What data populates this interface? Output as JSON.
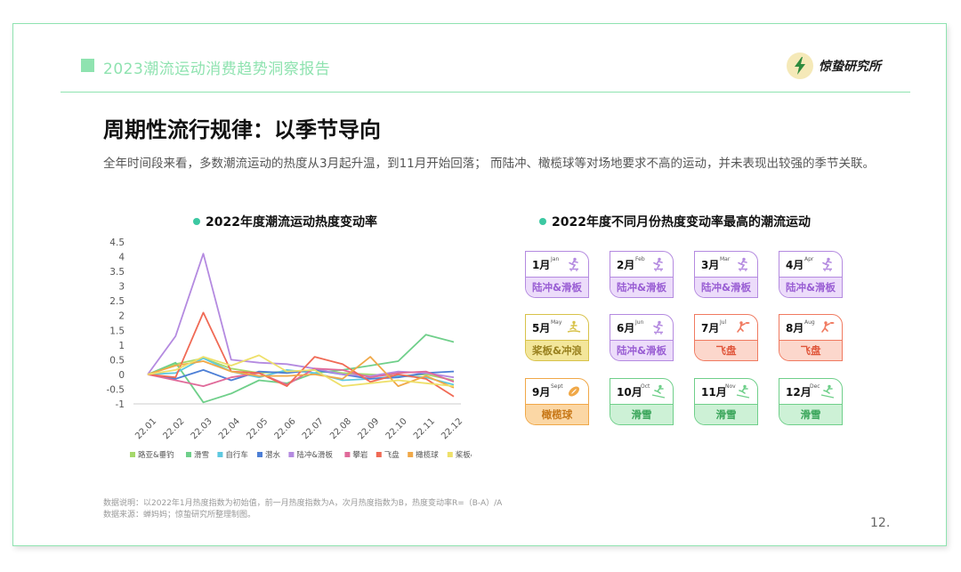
{
  "header": {
    "report_title": "2023潮流运动消费趋势洞察报告",
    "logo_text": "惊蛰研究所"
  },
  "page": {
    "title": "周期性流行规律：以季节导向",
    "description": "全年时间段来看，多数潮流运动的热度从3月起升温，到11月开始回落； 而陆冲、橄榄球等对场地要求不高的运动，并未表现出较强的季节关联。",
    "note": "数据说明：以2022年1月热度指数为初始值，前一月热度指数为A，次月热度指数为B，热度变动率R=（B-A）/A",
    "source": "数据来源：蝉妈妈；惊蛰研究所整理制图。",
    "page_number": "12."
  },
  "chart_data": {
    "type": "line",
    "title": "2022年度潮流运动热度变动率",
    "categories": [
      "22.01",
      "22.02",
      "22.03",
      "22.04",
      "22.05",
      "22.06",
      "22.07",
      "22.08",
      "22.09",
      "22.10",
      "22.11",
      "22.12"
    ],
    "ylim": [
      -1,
      4.5
    ],
    "yticks": [
      "4.5",
      "4",
      "3.5",
      "3",
      "2.5",
      "2",
      "1.5",
      "1",
      "0.5",
      "0",
      "-0.5",
      "-1"
    ],
    "grid": false,
    "legend_position": "bottom",
    "series": [
      {
        "name": "路亚&垂钓",
        "color": "#a5d86b",
        "values": [
          0,
          0.35,
          0.55,
          0.2,
          0.05,
          0.1,
          0.15,
          0.05,
          0,
          -0.05,
          0,
          -0.2
        ]
      },
      {
        "name": "滑雪",
        "color": "#6fcf8a",
        "values": [
          0,
          0.4,
          -0.95,
          -0.65,
          -0.2,
          -0.3,
          0.05,
          0.15,
          0.3,
          0.45,
          1.35,
          1.1
        ]
      },
      {
        "name": "自行车",
        "color": "#5ec9e0",
        "values": [
          0,
          0.05,
          0.55,
          0.1,
          -0.1,
          0.15,
          0.05,
          -0.2,
          -0.15,
          -0.05,
          -0.1,
          -0.35
        ]
      },
      {
        "name": "潜水",
        "color": "#4d7fd6",
        "values": [
          0,
          -0.15,
          0.15,
          -0.2,
          0.1,
          0.05,
          0.15,
          0,
          -0.15,
          -0.1,
          0.05,
          0.1
        ]
      },
      {
        "name": "陆冲&滑板",
        "color": "#b48ae0",
        "values": [
          0,
          1.3,
          4.1,
          0.5,
          0.4,
          0.35,
          0.2,
          0,
          -0.05,
          0.1,
          0.05,
          -0.1
        ]
      },
      {
        "name": "攀岩",
        "color": "#e06a9a",
        "values": [
          0,
          -0.2,
          -0.4,
          -0.1,
          0.05,
          -0.35,
          0.2,
          0.15,
          -0.1,
          0.05,
          0.1,
          -0.25
        ]
      },
      {
        "name": "飞盘",
        "color": "#f06a55",
        "values": [
          0,
          -0.1,
          2.1,
          0.1,
          0.05,
          -0.4,
          0.6,
          0.35,
          -0.25,
          0,
          -0.15,
          -0.75
        ]
      },
      {
        "name": "橄榄球",
        "color": "#f0a848",
        "values": [
          0,
          0.3,
          0.45,
          0.1,
          -0.05,
          -0.05,
          0,
          -0.15,
          0.6,
          -0.4,
          -0.05,
          -0.45
        ]
      },
      {
        "name": "桨板&冲浪",
        "color": "#eee06a",
        "values": [
          0,
          0.15,
          0.6,
          0.3,
          0.65,
          0.1,
          0.15,
          -0.4,
          -0.3,
          -0.2,
          -0.3,
          -0.4
        ]
      }
    ]
  },
  "panel": {
    "title": "2022年度不同月份热度变动率最高的潮流运动",
    "cards": [
      {
        "month": "1月",
        "abbr": "Jan",
        "sport": "陆冲&滑板",
        "icon": "skateboard-icon",
        "border": "#b48ae0",
        "fill": "#ecdcfa",
        "text": "#9a5fd4"
      },
      {
        "month": "2月",
        "abbr": "Feb",
        "sport": "陆冲&滑板",
        "icon": "skateboard-icon",
        "border": "#b48ae0",
        "fill": "#ecdcfa",
        "text": "#9a5fd4"
      },
      {
        "month": "3月",
        "abbr": "Mar",
        "sport": "陆冲&滑板",
        "icon": "skateboard-icon",
        "border": "#b48ae0",
        "fill": "#ecdcfa",
        "text": "#9a5fd4"
      },
      {
        "month": "4月",
        "abbr": "Apr",
        "sport": "陆冲&滑板",
        "icon": "skateboard-icon",
        "border": "#b48ae0",
        "fill": "#ecdcfa",
        "text": "#9a5fd4"
      },
      {
        "month": "5月",
        "abbr": "May",
        "sport": "桨板&冲浪",
        "icon": "surf-icon",
        "border": "#d8c24a",
        "fill": "#f3e69a",
        "text": "#9a8220"
      },
      {
        "month": "6月",
        "abbr": "Jun",
        "sport": "陆冲&滑板",
        "icon": "skateboard-icon",
        "border": "#b48ae0",
        "fill": "#ecdcfa",
        "text": "#9a5fd4"
      },
      {
        "month": "7月",
        "abbr": "Jul",
        "sport": "飞盘",
        "icon": "frisbee-icon",
        "border": "#f07a60",
        "fill": "#fcd7cc",
        "text": "#e0553a"
      },
      {
        "month": "8月",
        "abbr": "Aug",
        "sport": "飞盘",
        "icon": "frisbee-icon",
        "border": "#f07a60",
        "fill": "#fcd7cc",
        "text": "#e0553a"
      },
      {
        "month": "9月",
        "abbr": "Sept",
        "sport": "橄榄球",
        "icon": "rugby-icon",
        "border": "#f0a848",
        "fill": "#fbd7a5",
        "text": "#c87818"
      },
      {
        "month": "10月",
        "abbr": "Oct",
        "sport": "滑雪",
        "icon": "ski-icon",
        "border": "#6fcf8a",
        "fill": "#cdf1d6",
        "text": "#3aa55a"
      },
      {
        "month": "11月",
        "abbr": "Nov",
        "sport": "滑雪",
        "icon": "ski-icon",
        "border": "#6fcf8a",
        "fill": "#cdf1d6",
        "text": "#3aa55a"
      },
      {
        "month": "12月",
        "abbr": "Dec",
        "sport": "滑雪",
        "icon": "ski-icon",
        "border": "#6fcf8a",
        "fill": "#cdf1d6",
        "text": "#3aa55a"
      }
    ]
  }
}
